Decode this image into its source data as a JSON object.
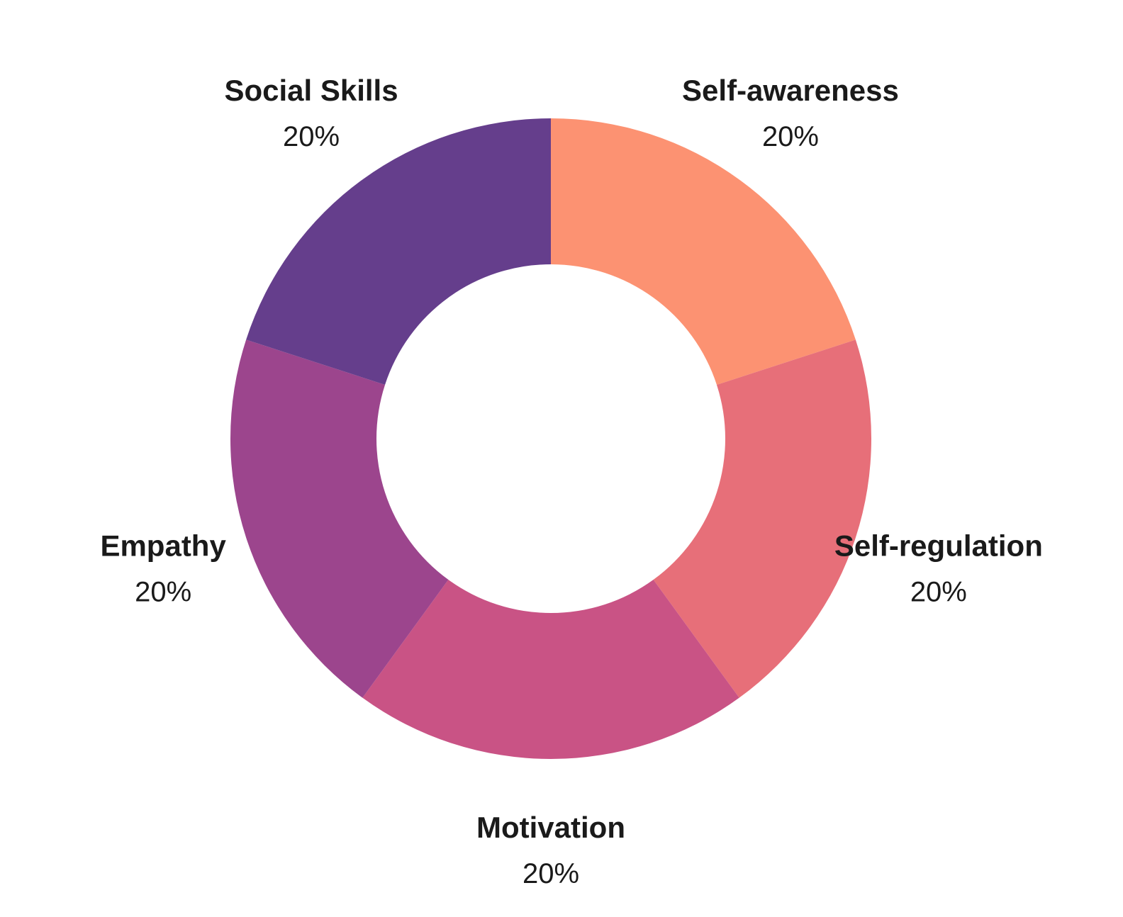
{
  "chart_data": {
    "type": "pie",
    "variant": "donut",
    "title": "",
    "slices": [
      {
        "label": "Self-awareness",
        "value": 20,
        "display": "20%",
        "color": "#FC9272"
      },
      {
        "label": "Self-regulation",
        "value": 20,
        "display": "20%",
        "color": "#E76F79"
      },
      {
        "label": "Motivation",
        "value": 20,
        "display": "20%",
        "color": "#C95385"
      },
      {
        "label": "Empathy",
        "value": 20,
        "display": "20%",
        "color": "#9C458D"
      },
      {
        "label": "Social Skills",
        "value": 20,
        "display": "20%",
        "color": "#653E8C"
      }
    ],
    "start_direction": "top",
    "direction": "clockwise",
    "legend": "none"
  }
}
